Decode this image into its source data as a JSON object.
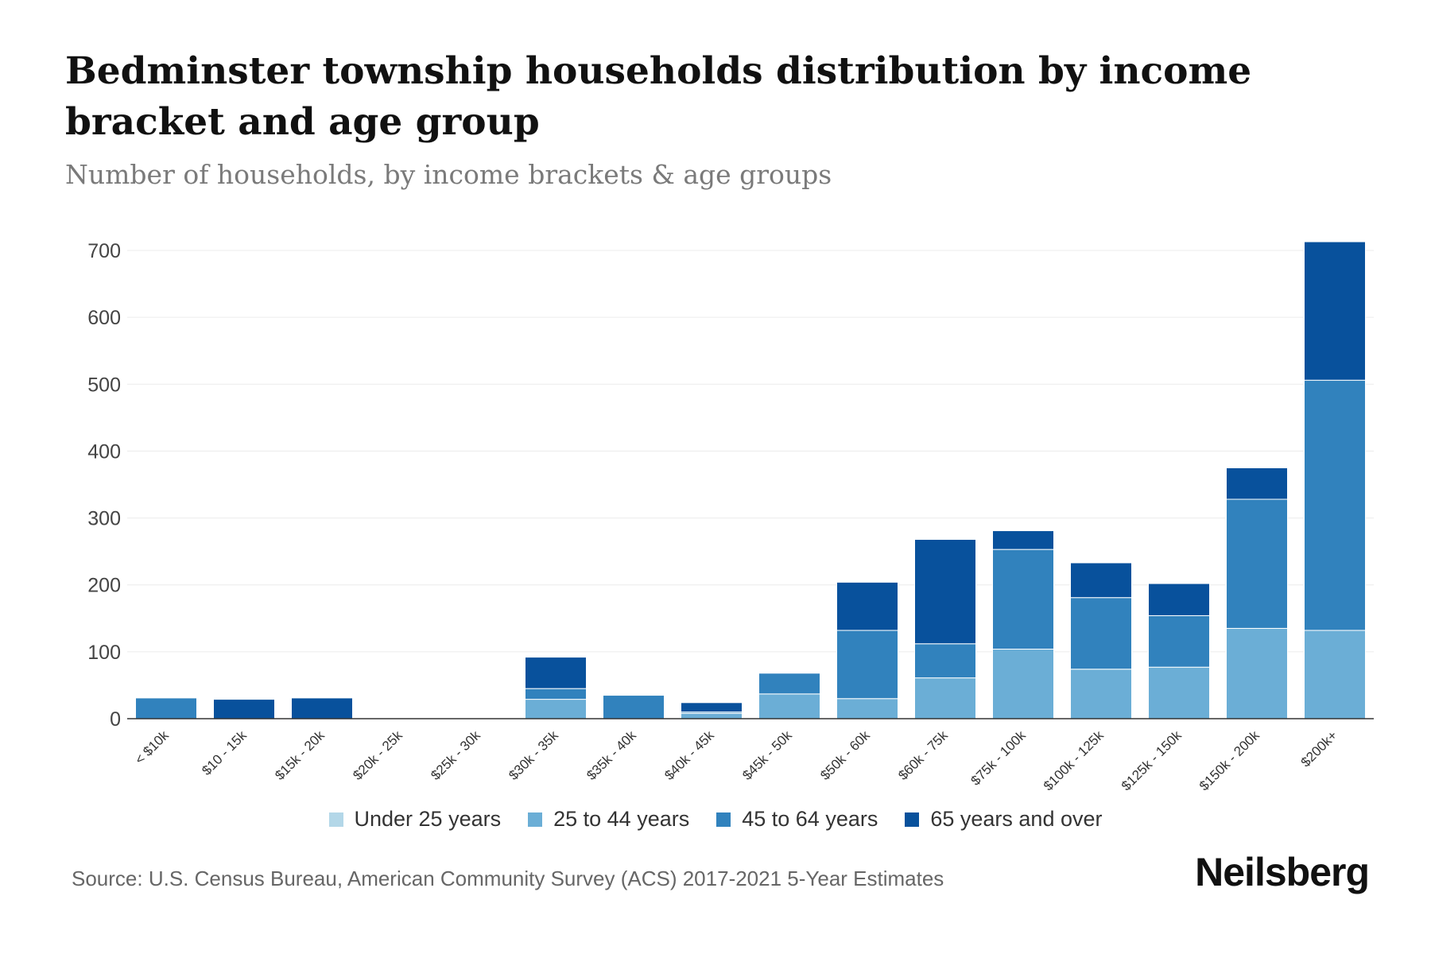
{
  "chart_data": {
    "type": "bar",
    "stacked": true,
    "title": "Bedminster township households distribution by income bracket and age group",
    "subtitle": "Number of households, by income brackets & age groups",
    "xlabel": "",
    "ylabel": "",
    "ylim": [
      0,
      700
    ],
    "yticks": [
      0,
      100,
      200,
      300,
      400,
      500,
      600,
      700
    ],
    "grid": true,
    "legend_position": "bottom-center",
    "categories": [
      "< $10k",
      "$10 - 15k",
      "$15k - 20k",
      "$20k - 25k",
      "$25k - 30k",
      "$30k - 35k",
      "$35k - 40k",
      "$40k - 45k",
      "$45k - 50k",
      "$50k - 60k",
      "$60k - 75k",
      "$75k - 100k",
      "$100k - 125k",
      "$125k - 150k",
      "$150k - 200k",
      "$200k+"
    ],
    "series": [
      {
        "name": "Under 25 years",
        "color": "#b3d7e8",
        "values": [
          0,
          0,
          0,
          0,
          0,
          0,
          0,
          0,
          0,
          0,
          0,
          0,
          0,
          0,
          0,
          0
        ]
      },
      {
        "name": "25 to 44 years",
        "color": "#6baed6",
        "values": [
          0,
          0,
          0,
          0,
          0,
          29,
          0,
          8,
          37,
          30,
          61,
          104,
          74,
          77,
          135,
          132
        ]
      },
      {
        "name": "45 to 64 years",
        "color": "#3182bd",
        "values": [
          31,
          0,
          0,
          0,
          0,
          16,
          35,
          2,
          31,
          102,
          51,
          149,
          107,
          77,
          193,
          374
        ]
      },
      {
        "name": "65 years and over",
        "color": "#08519c",
        "values": [
          0,
          29,
          31,
          0,
          0,
          47,
          0,
          14,
          0,
          72,
          156,
          28,
          52,
          48,
          47,
          207
        ]
      }
    ]
  },
  "footer": {
    "source": "Source: U.S. Census Bureau, American Community Survey (ACS) 2017-2021 5-Year Estimates",
    "brand": "Neilsberg"
  }
}
